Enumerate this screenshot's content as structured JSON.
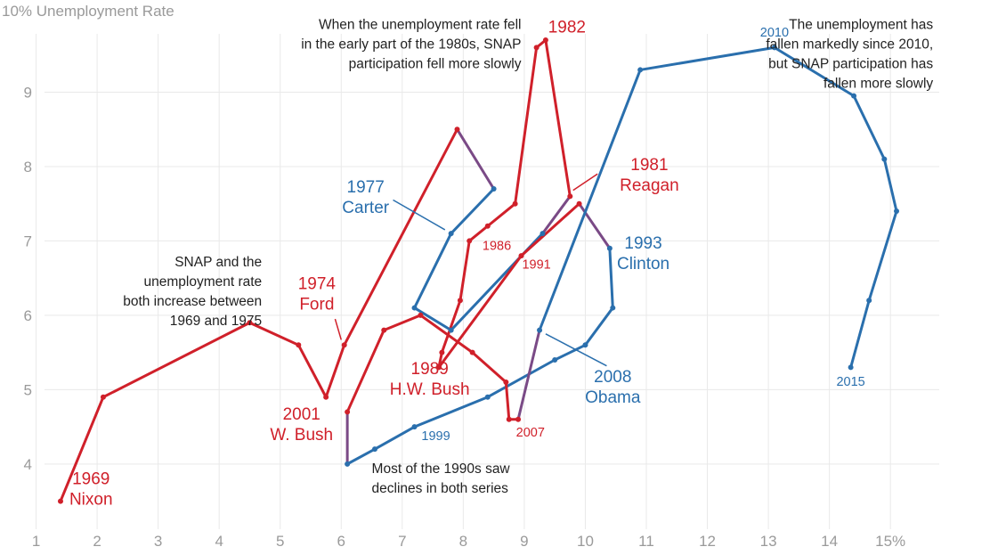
{
  "chart_data": {
    "type": "line",
    "title": "",
    "ylabel": "10% Unemployment Rate",
    "xlabel": "",
    "xlim": [
      0.7,
      15.8
    ],
    "ylim": [
      3.1,
      10.0
    ],
    "x_ticks": [
      {
        "value": 1,
        "label": "1"
      },
      {
        "value": 2,
        "label": "2"
      },
      {
        "value": 3,
        "label": "3"
      },
      {
        "value": 4,
        "label": "4"
      },
      {
        "value": 5,
        "label": "5"
      },
      {
        "value": 6,
        "label": "6"
      },
      {
        "value": 7,
        "label": "7"
      },
      {
        "value": 8,
        "label": "8"
      },
      {
        "value": 9,
        "label": "9"
      },
      {
        "value": 10,
        "label": "10"
      },
      {
        "value": 11,
        "label": "11"
      },
      {
        "value": 12,
        "label": "12"
      },
      {
        "value": 13,
        "label": "13"
      },
      {
        "value": 14,
        "label": "14"
      },
      {
        "value": 15,
        "label": "15%"
      }
    ],
    "y_ticks": [
      {
        "value": 4,
        "label": "4"
      },
      {
        "value": 5,
        "label": "5"
      },
      {
        "value": 6,
        "label": "6"
      },
      {
        "value": 7,
        "label": "7"
      },
      {
        "value": 8,
        "label": "8"
      },
      {
        "value": 9,
        "label": "9"
      }
    ],
    "grid": true,
    "series_colors": {
      "republican": "#d0202a",
      "democrat": "#2a6fad"
    },
    "points": [
      {
        "x": 1.4,
        "y": 3.5,
        "party": "R"
      },
      {
        "x": 2.1,
        "y": 4.9,
        "party": "R"
      },
      {
        "x": 4.5,
        "y": 5.9,
        "party": "R"
      },
      {
        "x": 5.3,
        "y": 5.6,
        "party": "R"
      },
      {
        "x": 5.75,
        "y": 4.9,
        "party": "R"
      },
      {
        "x": 6.05,
        "y": 5.6,
        "party": "R"
      },
      {
        "x": 7.9,
        "y": 8.5,
        "party": "R"
      },
      {
        "x": 8.5,
        "y": 7.7,
        "party": "D"
      },
      {
        "x": 7.8,
        "y": 7.1,
        "party": "D"
      },
      {
        "x": 7.2,
        "y": 6.1,
        "party": "D"
      },
      {
        "x": 7.8,
        "y": 5.8,
        "party": "D"
      },
      {
        "x": 9.3,
        "y": 7.1,
        "party": "D"
      },
      {
        "x": 9.75,
        "y": 7.6,
        "party": "R"
      },
      {
        "x": 9.35,
        "y": 9.7,
        "party": "R"
      },
      {
        "x": 9.2,
        "y": 9.6,
        "party": "R"
      },
      {
        "x": 8.85,
        "y": 7.5,
        "party": "R"
      },
      {
        "x": 8.4,
        "y": 7.2,
        "party": "R"
      },
      {
        "x": 8.1,
        "y": 7.0,
        "party": "R"
      },
      {
        "x": 7.95,
        "y": 6.2,
        "party": "R"
      },
      {
        "x": 7.65,
        "y": 5.5,
        "party": "R"
      },
      {
        "x": 7.6,
        "y": 5.3,
        "party": "R"
      },
      {
        "x": 8.95,
        "y": 6.8,
        "party": "R"
      },
      {
        "x": 9.9,
        "y": 7.5,
        "party": "R"
      },
      {
        "x": 10.4,
        "y": 6.9,
        "party": "D"
      },
      {
        "x": 10.45,
        "y": 6.1,
        "party": "D"
      },
      {
        "x": 10.0,
        "y": 5.6,
        "party": "D"
      },
      {
        "x": 9.5,
        "y": 5.4,
        "party": "D"
      },
      {
        "x": 8.4,
        "y": 4.9,
        "party": "D"
      },
      {
        "x": 7.2,
        "y": 4.5,
        "party": "D"
      },
      {
        "x": 6.55,
        "y": 4.2,
        "party": "D"
      },
      {
        "x": 6.1,
        "y": 4.0,
        "party": "D"
      },
      {
        "x": 6.1,
        "y": 4.7,
        "party": "R"
      },
      {
        "x": 6.7,
        "y": 5.8,
        "party": "R"
      },
      {
        "x": 7.3,
        "y": 6.0,
        "party": "R"
      },
      {
        "x": 8.15,
        "y": 5.5,
        "party": "R"
      },
      {
        "x": 8.7,
        "y": 5.1,
        "party": "R"
      },
      {
        "x": 8.75,
        "y": 4.6,
        "party": "R"
      },
      {
        "x": 8.9,
        "y": 4.6,
        "party": "R"
      },
      {
        "x": 9.25,
        "y": 5.8,
        "party": "D"
      },
      {
        "x": 10.9,
        "y": 9.3,
        "party": "D"
      },
      {
        "x": 13.1,
        "y": 9.6,
        "party": "D"
      },
      {
        "x": 14.4,
        "y": 8.95,
        "party": "D"
      },
      {
        "x": 14.9,
        "y": 8.1,
        "party": "D"
      },
      {
        "x": 15.1,
        "y": 7.4,
        "party": "D"
      },
      {
        "x": 14.65,
        "y": 6.2,
        "party": "D"
      },
      {
        "x": 14.35,
        "y": 5.3,
        "party": "D"
      }
    ],
    "labels": [
      {
        "lines": [
          "1969",
          "Nixon"
        ],
        "x": 1.9,
        "y": 3.73,
        "party": "R",
        "size": "big"
      },
      {
        "lines": [
          "1974",
          "Ford"
        ],
        "x": 5.6,
        "y": 6.35,
        "party": "R",
        "size": "big"
      },
      {
        "lines": [
          "1977",
          "Carter"
        ],
        "x": 6.4,
        "y": 7.65,
        "party": "D",
        "size": "big"
      },
      {
        "lines": [
          "1981",
          "Reagan"
        ],
        "x": 11.05,
        "y": 7.95,
        "party": "R",
        "size": "big"
      },
      {
        "lines": [
          "1982"
        ],
        "x": 9.7,
        "y": 9.8,
        "party": "R",
        "size": "big"
      },
      {
        "lines": [
          "1986"
        ],
        "x": 8.55,
        "y": 6.88,
        "party": "R",
        "size": "small"
      },
      {
        "lines": [
          "1991"
        ],
        "x": 9.2,
        "y": 6.63,
        "party": "R",
        "size": "small"
      },
      {
        "lines": [
          "1989",
          "H.W. Bush"
        ],
        "x": 7.45,
        "y": 5.21,
        "party": "R",
        "size": "big"
      },
      {
        "lines": [
          "1993",
          "Clinton"
        ],
        "x": 10.95,
        "y": 6.9,
        "party": "D",
        "size": "big"
      },
      {
        "lines": [
          "2001",
          "W. Bush"
        ],
        "x": 5.35,
        "y": 4.6,
        "party": "R",
        "size": "big"
      },
      {
        "lines": [
          "1999"
        ],
        "x": 7.55,
        "y": 4.32,
        "party": "D",
        "size": "small"
      },
      {
        "lines": [
          "2007"
        ],
        "x": 9.1,
        "y": 4.37,
        "party": "R",
        "size": "small"
      },
      {
        "lines": [
          "2008",
          "Obama"
        ],
        "x": 10.45,
        "y": 5.1,
        "party": "D",
        "size": "big"
      },
      {
        "lines": [
          "2010"
        ],
        "x": 13.1,
        "y": 9.75,
        "party": "D",
        "size": "small"
      },
      {
        "lines": [
          "2015"
        ],
        "x": 14.35,
        "y": 5.05,
        "party": "D",
        "size": "small"
      }
    ],
    "annotations": [
      {
        "lines": [
          "When the unemployment rate fell",
          "in the early part of the 1980s, SNAP",
          "participation fell more slowly"
        ],
        "x": 8.95,
        "y": 9.85,
        "anchor": "end"
      },
      {
        "lines": [
          "The unemployment has",
          "fallen markedly since 2010,",
          "but SNAP participation has",
          "fallen more slowly"
        ],
        "x": 15.7,
        "y": 9.85,
        "anchor": "end"
      },
      {
        "lines": [
          "SNAP and the",
          "unemployment rate",
          "both increase between",
          "1969 and 1975"
        ],
        "x": 4.7,
        "y": 6.66,
        "anchor": "end"
      },
      {
        "lines": [
          "Most of the 1990s saw",
          "declines in both series"
        ],
        "x": 6.5,
        "y": 3.88,
        "anchor": "start"
      }
    ],
    "leaders": [
      {
        "x1": 6.85,
        "y1": 7.55,
        "x2": 7.7,
        "y2": 7.15,
        "party": "D"
      },
      {
        "x1": 5.9,
        "y1": 5.95,
        "x2": 6.0,
        "y2": 5.67,
        "party": "R"
      },
      {
        "x1": 10.2,
        "y1": 7.9,
        "x2": 9.8,
        "y2": 7.68,
        "party": "R"
      },
      {
        "x1": 10.35,
        "y1": 5.32,
        "x2": 9.35,
        "y2": 5.75,
        "party": "D"
      }
    ]
  }
}
